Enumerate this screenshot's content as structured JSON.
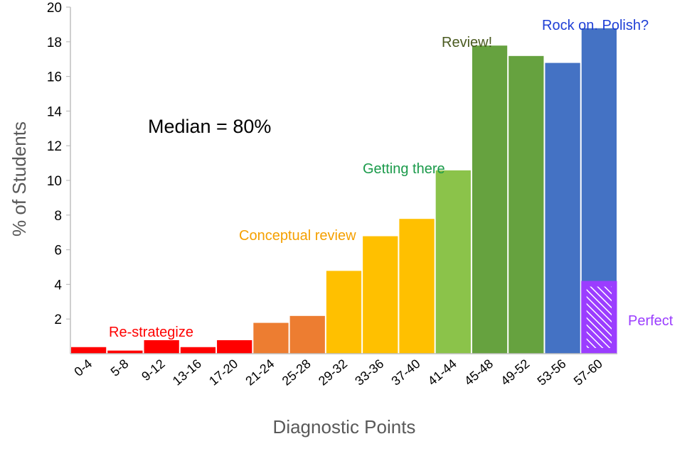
{
  "chart_data": {
    "type": "bar",
    "xlabel": "Diagnostic Points",
    "ylabel": "% of Students",
    "ylim": [
      0,
      20
    ],
    "yticks": [
      2,
      4,
      6,
      8,
      10,
      12,
      14,
      16,
      18,
      20
    ],
    "grid": false,
    "categories": [
      "0-4",
      "5-8",
      "9-12",
      "13-16",
      "17-20",
      "21-24",
      "25-28",
      "29-32",
      "33-36",
      "37-40",
      "41-44",
      "45-48",
      "49-52",
      "53-56",
      "57-60"
    ],
    "values": [
      0.4,
      0.2,
      0.8,
      0.4,
      0.8,
      1.8,
      2.2,
      4.8,
      6.8,
      7.8,
      10.6,
      17.8,
      17.2,
      16.8,
      18.8
    ],
    "bar_colors": [
      "#ff0000",
      "#ff0000",
      "#ff0000",
      "#ff0000",
      "#ff0000",
      "#ed7d31",
      "#ed7d31",
      "#ffc000",
      "#ffc000",
      "#ffc000",
      "#8bc34a",
      "#66a23f",
      "#66a23f",
      "#4472c4",
      "#4472c4"
    ],
    "perfect_overlay": {
      "category": "57-60",
      "value": 4.2,
      "color": "#9b3dff"
    },
    "annotations": [
      {
        "text": "Re-strategize",
        "color": "#ff0000"
      },
      {
        "text": "Conceptual review",
        "color": "#f5a000"
      },
      {
        "text": "Getting there",
        "color": "#1a9a4a"
      },
      {
        "text": "Review!",
        "color": "#4a5a20"
      },
      {
        "text": "Rock on. Polish?",
        "color": "#1f3fd6"
      },
      {
        "text": "Perfect",
        "color": "#9b3dff"
      }
    ],
    "median_label": "Median = 80%"
  }
}
